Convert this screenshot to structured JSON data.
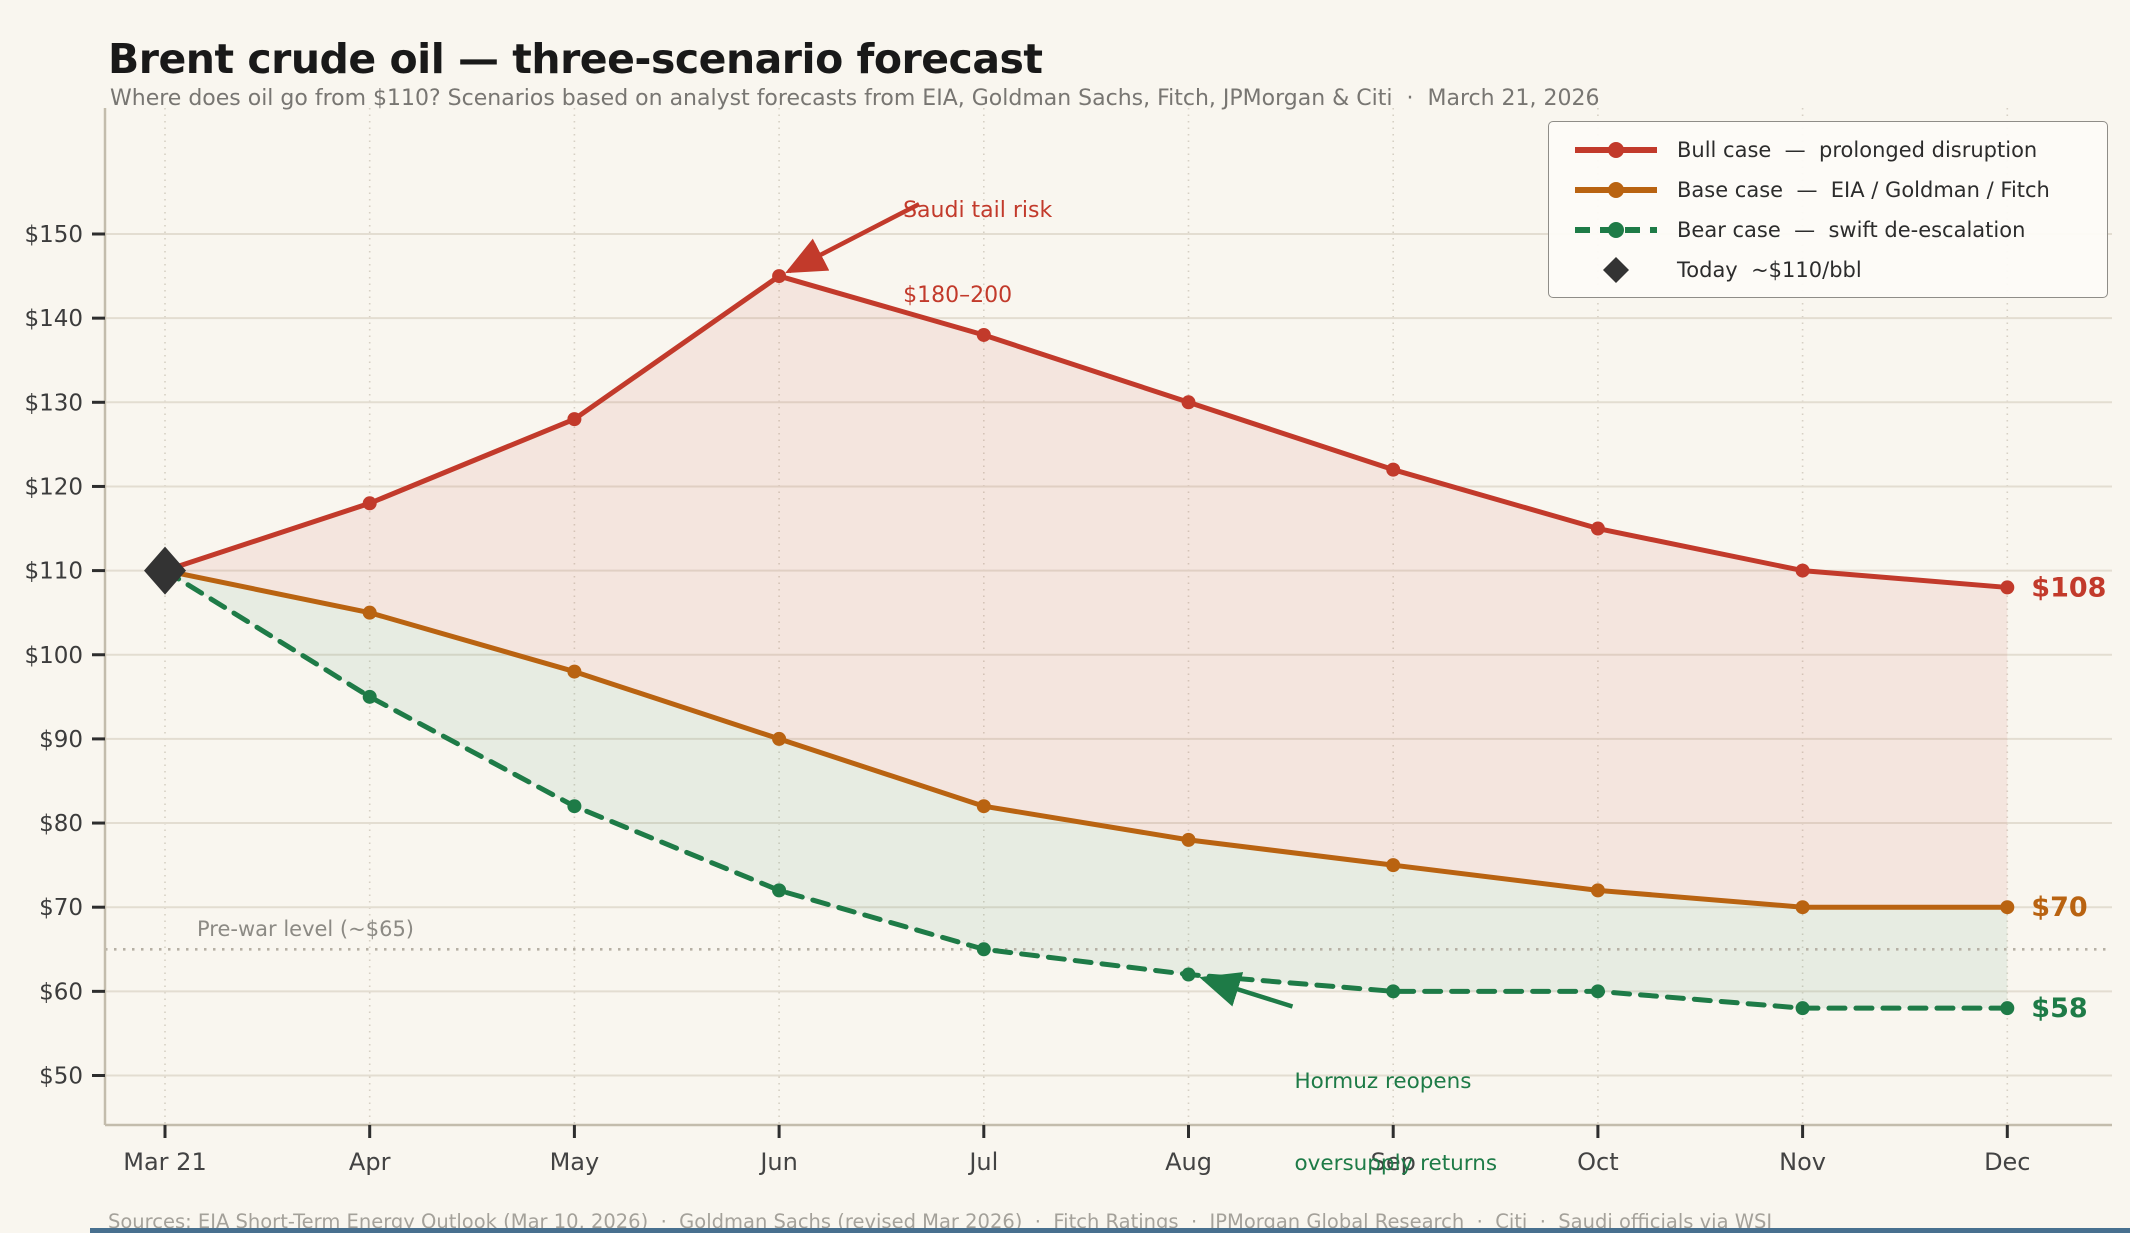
{
  "page": {
    "title": "Brent crude oil — three-scenario forecast",
    "subtitle": "Where does oil go from $110? Scenarios based on analyst forecasts from EIA, Goldman Sachs, Fitch, JPMorgan & Citi  ·  March 21, 2026",
    "sources": "Sources: EIA Short-Term Energy Outlook (Mar 10, 2026)  ·  Goldman Sachs (revised Mar 2026)  ·  Fitch Ratings  ·  JPMorgan Global Research  ·  Citi  ·  Saudi officials via WSJ"
  },
  "chart_data": {
    "type": "line",
    "title": "Brent crude oil — three-scenario forecast",
    "x_categories": [
      "Mar 21",
      "Apr",
      "May",
      "Jun",
      "Jul",
      "Aug",
      "Sep",
      "Oct",
      "Nov",
      "Dec"
    ],
    "xlabel": "",
    "ylabel": "",
    "ylim": [
      44,
      164.5
    ],
    "grid": true,
    "y_ticks": {
      "values": [
        50,
        60,
        70,
        80,
        90,
        100,
        110,
        120,
        130,
        140,
        150
      ],
      "labels": [
        "$50",
        "$60",
        "$70",
        "$80",
        "$90",
        "$100",
        "$110",
        "$120",
        "$130",
        "$140",
        "$150"
      ]
    },
    "series": [
      {
        "id": "bull",
        "name": "Bull case",
        "legend_label": "Bull case  —  prolonged disruption",
        "color": "#c23a2b",
        "line_style": "solid",
        "values": [
          110,
          118,
          128,
          145,
          138,
          130,
          122,
          115,
          110,
          108
        ],
        "end_label": "$108"
      },
      {
        "id": "base",
        "name": "Base case",
        "legend_label": "Base case  —  EIA / Goldman / Fitch",
        "color": "#b96311",
        "line_style": "solid",
        "values": [
          110,
          105,
          98,
          90,
          82,
          78,
          75,
          72,
          70,
          70
        ],
        "end_label": "$70"
      },
      {
        "id": "bear",
        "name": "Bear case",
        "legend_label": "Bear case  —  swift de-escalation",
        "color": "#1e7b47",
        "line_style": "dashed",
        "values": [
          110,
          95,
          82,
          72,
          65,
          62,
          60,
          60,
          58,
          58
        ],
        "end_label": "$58"
      }
    ],
    "bands": [
      {
        "upper": "bull",
        "lower": "base",
        "color": "rgba(194,58,43,0.085)"
      },
      {
        "upper": "base",
        "lower": "bear",
        "color": "rgba(30,123,71,0.08)"
      }
    ],
    "today_marker": {
      "x_index": 0,
      "value": 110,
      "label": "Today  ~$110/bbl",
      "color": "#333333"
    },
    "reference_line": {
      "value": 65,
      "label": "Pre-war level (~$65)",
      "color": "#b6b0a4"
    },
    "annotations": [
      {
        "id": "saudi-tail-risk",
        "lines": [
          "Saudi tail risk",
          "$180–200"
        ],
        "color": "#c23a2b",
        "anchor_series": "bull",
        "anchor_index": 3
      },
      {
        "id": "hormuz-reopens",
        "lines": [
          "Hormuz reopens",
          "oversupply returns"
        ],
        "color": "#1e7b47",
        "anchor_series": "bear",
        "anchor_index": 5
      }
    ],
    "legend_position": "upper right"
  },
  "legend": {
    "items": [
      {
        "id": "bull",
        "swatch": "line-solid",
        "color": "#c23a2b",
        "label": "Bull case  —  prolonged disruption"
      },
      {
        "id": "base",
        "swatch": "line-solid",
        "color": "#b96311",
        "label": "Base case  —  EIA / Goldman / Fitch"
      },
      {
        "id": "bear",
        "swatch": "line-dashed",
        "color": "#1e7b47",
        "label": "Bear case  —  swift de-escalation"
      },
      {
        "id": "today",
        "swatch": "diamond",
        "color": "#333333",
        "label": "Today  ~$110/bbl"
      }
    ]
  }
}
